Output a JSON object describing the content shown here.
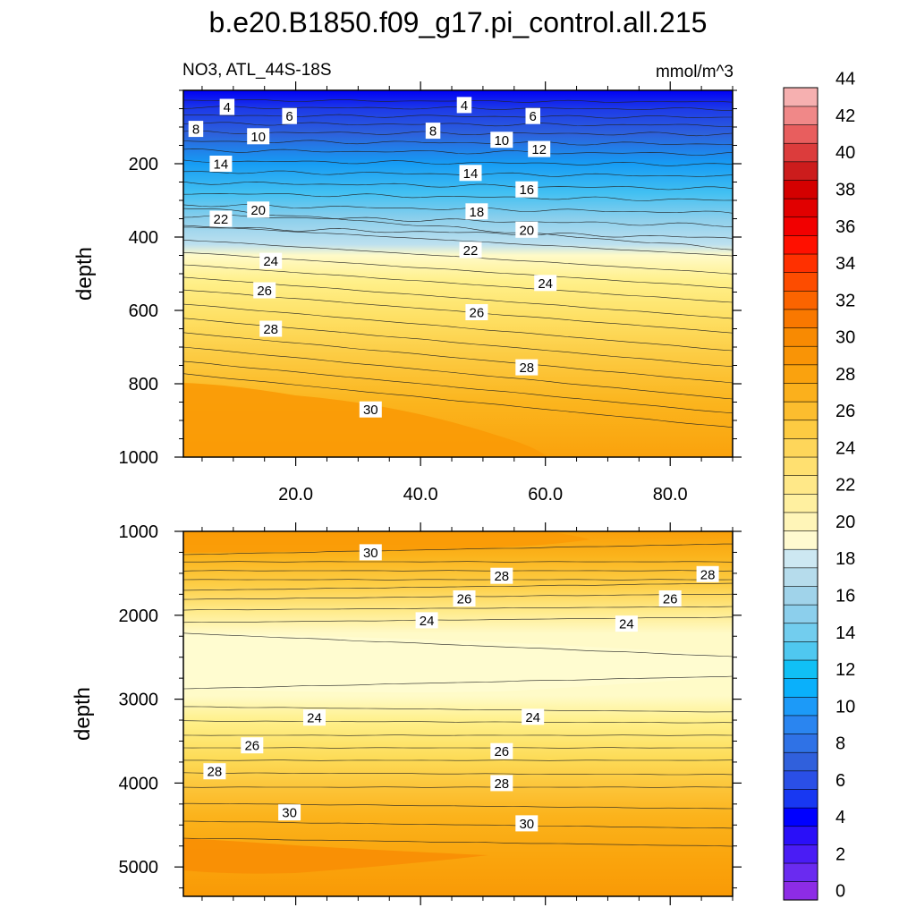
{
  "title": "b.e20.B1850.f09_g17.pi_control.all.215",
  "subtitle_left": "NO3, ATL_44S-18S",
  "subtitle_right": "mmol/m^3",
  "chart_data": [
    {
      "type": "heatmap",
      "panel": "upper",
      "ylabel": "depth",
      "xlim": [
        2,
        90
      ],
      "ylim": [
        0,
        1000
      ],
      "y_reversed": true,
      "xticks": [
        "20.0",
        "40.0",
        "60.0",
        "80.0"
      ],
      "yticks": [
        "200",
        "400",
        "600",
        "800",
        "1000"
      ],
      "contour_labels": [
        {
          "text": "4",
          "x": 9,
          "y": 45
        },
        {
          "text": "6",
          "x": 19,
          "y": 70
        },
        {
          "text": "8",
          "x": 4,
          "y": 105
        },
        {
          "text": "10",
          "x": 14,
          "y": 125
        },
        {
          "text": "14",
          "x": 8,
          "y": 200
        },
        {
          "text": "20",
          "x": 14,
          "y": 325
        },
        {
          "text": "22",
          "x": 8,
          "y": 350
        },
        {
          "text": "24",
          "x": 16,
          "y": 465
        },
        {
          "text": "26",
          "x": 15,
          "y": 545
        },
        {
          "text": "28",
          "x": 16,
          "y": 650
        },
        {
          "text": "30",
          "x": 32,
          "y": 870
        },
        {
          "text": "4",
          "x": 47,
          "y": 40
        },
        {
          "text": "6",
          "x": 58,
          "y": 70
        },
        {
          "text": "8",
          "x": 42,
          "y": 110
        },
        {
          "text": "10",
          "x": 53,
          "y": 135
        },
        {
          "text": "12",
          "x": 59,
          "y": 160
        },
        {
          "text": "14",
          "x": 48,
          "y": 225
        },
        {
          "text": "16",
          "x": 57,
          "y": 270
        },
        {
          "text": "18",
          "x": 49,
          "y": 330
        },
        {
          "text": "20",
          "x": 57,
          "y": 380
        },
        {
          "text": "22",
          "x": 48,
          "y": 435
        },
        {
          "text": "24",
          "x": 60,
          "y": 525
        },
        {
          "text": "26",
          "x": 49,
          "y": 605
        },
        {
          "text": "28",
          "x": 57,
          "y": 755
        }
      ]
    },
    {
      "type": "heatmap",
      "panel": "lower",
      "ylabel": "depth",
      "xlim": [
        2,
        90
      ],
      "ylim": [
        1000,
        5350
      ],
      "y_reversed": true,
      "yticks": [
        "1000",
        "2000",
        "3000",
        "4000",
        "5000"
      ],
      "contour_labels": [
        {
          "text": "30",
          "x": 32,
          "y": 1250
        },
        {
          "text": "28",
          "x": 53,
          "y": 1530
        },
        {
          "text": "28",
          "x": 86,
          "y": 1510
        },
        {
          "text": "26",
          "x": 47,
          "y": 1800
        },
        {
          "text": "26",
          "x": 80,
          "y": 1800
        },
        {
          "text": "24",
          "x": 41,
          "y": 2060
        },
        {
          "text": "24",
          "x": 73,
          "y": 2100
        },
        {
          "text": "24",
          "x": 23,
          "y": 3220
        },
        {
          "text": "24",
          "x": 58,
          "y": 3210
        },
        {
          "text": "26",
          "x": 13,
          "y": 3550
        },
        {
          "text": "26",
          "x": 53,
          "y": 3620
        },
        {
          "text": "28",
          "x": 7,
          "y": 3860
        },
        {
          "text": "28",
          "x": 53,
          "y": 4000
        },
        {
          "text": "30",
          "x": 19,
          "y": 4350
        },
        {
          "text": "30",
          "x": 57,
          "y": 4480
        }
      ]
    }
  ],
  "colorbar": {
    "labels": [
      "0",
      "2",
      "4",
      "6",
      "8",
      "10",
      "12",
      "14",
      "16",
      "18",
      "20",
      "22",
      "24",
      "26",
      "28",
      "30",
      "32",
      "34",
      "36",
      "38",
      "40",
      "42",
      "44"
    ],
    "colors": [
      "#8d2ce6",
      "#6a2bf0",
      "#4a1cf5",
      "#2a0ff8",
      "#0000ff",
      "#1838f2",
      "#2a4fe6",
      "#3060dc",
      "#2f72e6",
      "#2a85f0",
      "#1c9af8",
      "#0ab0fb",
      "#10c0f5",
      "#4fc8f0",
      "#72cdee",
      "#8ccfec",
      "#a0d3ea",
      "#b6dcec",
      "#cde8f2",
      "#fffad0",
      "#fff5b8",
      "#fff0a0",
      "#ffe888",
      "#ffe070",
      "#fed65a",
      "#fdcb42",
      "#fcbd2e",
      "#fbb01c",
      "#faa20e",
      "#f99406",
      "#f88a02",
      "#f97800",
      "#fb6400",
      "#fd4c00",
      "#ff3000",
      "#ff1000",
      "#f20000",
      "#e10000",
      "#d40000",
      "#cc1c1c",
      "#dc3c3c",
      "#e85e5e",
      "#f08888",
      "#f6b0b0"
    ]
  }
}
